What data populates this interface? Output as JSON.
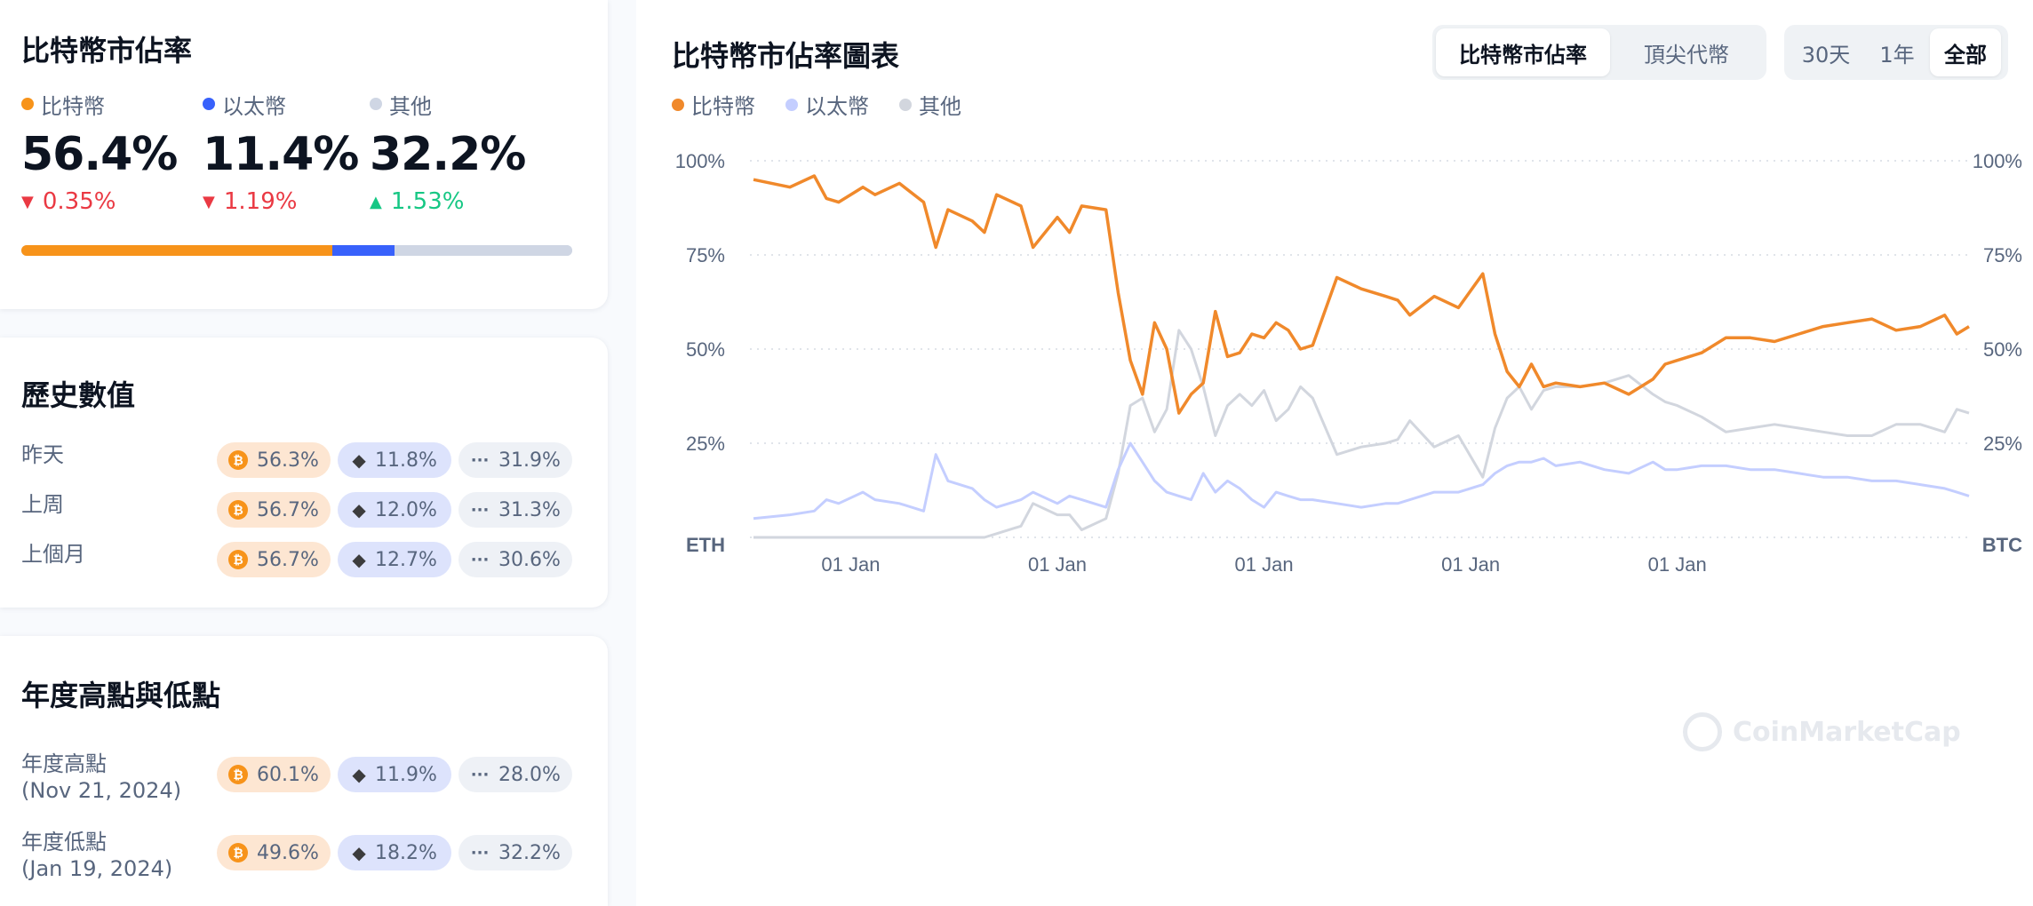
{
  "colors": {
    "btc": "#f7931a",
    "eth": "#3861fb",
    "other": "#cfd6e4",
    "btc_line": "#f0892b",
    "eth_line": "#c4ceff",
    "other_line": "#d2d6de"
  },
  "dominance": {
    "title": "比特幣市佔率",
    "items": [
      {
        "label": "比特幣",
        "value": "56.4%",
        "change": "0.35%",
        "direction": "down",
        "share": 56.4
      },
      {
        "label": "以太幣",
        "value": "11.4%",
        "change": "1.19%",
        "direction": "down",
        "share": 11.4
      },
      {
        "label": "其他",
        "value": "32.2%",
        "change": "1.53%",
        "direction": "up",
        "share": 32.2
      }
    ]
  },
  "history": {
    "title": "歷史數值",
    "rows": [
      {
        "label": "昨天",
        "btc": "56.3%",
        "eth": "11.8%",
        "other": "31.9%"
      },
      {
        "label": "上周",
        "btc": "56.7%",
        "eth": "12.0%",
        "other": "31.3%"
      },
      {
        "label": "上個月",
        "btc": "56.7%",
        "eth": "12.7%",
        "other": "30.6%"
      }
    ]
  },
  "yearly": {
    "title": "年度高點與低點",
    "rows": [
      {
        "label": "年度高點",
        "date": "(Nov 21, 2024)",
        "btc": "60.1%",
        "eth": "11.9%",
        "other": "28.0%"
      },
      {
        "label": "年度低點",
        "date": "(Jan 19, 2024)",
        "btc": "49.6%",
        "eth": "18.2%",
        "other": "32.2%"
      }
    ]
  },
  "chart": {
    "title": "比特幣市佔率圖表",
    "tabs": [
      {
        "label": "比特幣市佔率",
        "active": true
      },
      {
        "label": "頂尖代幣",
        "active": false
      }
    ],
    "ranges": [
      {
        "label": "30天",
        "active": false
      },
      {
        "label": "1年",
        "active": false
      },
      {
        "label": "全部",
        "active": true
      }
    ],
    "legend": [
      "比特幣",
      "以太幣",
      "其他"
    ],
    "watermark": "CoinMarketCap"
  },
  "chart_data": {
    "type": "line",
    "x_tick_labels": [
      "01 Jan",
      "01 Jan",
      "01 Jan",
      "01 Jan",
      "01 Jan"
    ],
    "x_tick_positions": [
      0.08,
      0.25,
      0.42,
      0.59,
      0.76
    ],
    "y_tick_labels_left": [
      "100%",
      "75%",
      "50%",
      "25%",
      "ETH"
    ],
    "y_tick_labels_right": [
      "100%",
      "75%",
      "50%",
      "25%",
      "BTC"
    ],
    "ylim": [
      0,
      100
    ],
    "grid": true,
    "x": [
      0,
      0.03,
      0.05,
      0.06,
      0.07,
      0.09,
      0.1,
      0.12,
      0.14,
      0.15,
      0.16,
      0.18,
      0.19,
      0.2,
      0.22,
      0.23,
      0.25,
      0.26,
      0.27,
      0.29,
      0.3,
      0.31,
      0.32,
      0.33,
      0.34,
      0.35,
      0.36,
      0.37,
      0.38,
      0.39,
      0.4,
      0.41,
      0.42,
      0.43,
      0.44,
      0.45,
      0.46,
      0.48,
      0.5,
      0.52,
      0.53,
      0.54,
      0.56,
      0.58,
      0.6,
      0.61,
      0.62,
      0.63,
      0.64,
      0.65,
      0.66,
      0.68,
      0.7,
      0.72,
      0.74,
      0.75,
      0.76,
      0.78,
      0.8,
      0.82,
      0.84,
      0.86,
      0.88,
      0.9,
      0.92,
      0.94,
      0.96,
      0.98,
      0.99,
      1.0
    ],
    "series": [
      {
        "name": "比特幣",
        "values": [
          95,
          93,
          96,
          90,
          89,
          93,
          91,
          94,
          89,
          77,
          87,
          84,
          81,
          91,
          88,
          77,
          85,
          81,
          88,
          87,
          65,
          47,
          38,
          57,
          50,
          33,
          38,
          41,
          60,
          48,
          49,
          54,
          53,
          57,
          55,
          50,
          51,
          69,
          66,
          64,
          63,
          59,
          64,
          61,
          70,
          54,
          44,
          40,
          46,
          40,
          41,
          40,
          41,
          38,
          42,
          46,
          47,
          49,
          53,
          53,
          52,
          54,
          56,
          57,
          58,
          55,
          56,
          59,
          54,
          56
        ]
      },
      {
        "name": "以太幣",
        "values": [
          5,
          6,
          7,
          10,
          9,
          12,
          10,
          9,
          7,
          22,
          15,
          13,
          10,
          8,
          10,
          12,
          9,
          11,
          10,
          8,
          18,
          25,
          20,
          15,
          12,
          11,
          10,
          17,
          12,
          15,
          13,
          10,
          8,
          12,
          11,
          10,
          10,
          9,
          8,
          9,
          9,
          10,
          12,
          12,
          14,
          17,
          19,
          20,
          20,
          21,
          19,
          20,
          18,
          17,
          20,
          18,
          18,
          19,
          19,
          18,
          18,
          17,
          16,
          16,
          15,
          15,
          14,
          13,
          12,
          11
        ]
      },
      {
        "name": "其他",
        "values": [
          0,
          0,
          0,
          0,
          0,
          0,
          0,
          0,
          0,
          0,
          0,
          0,
          0,
          1,
          3,
          9,
          6,
          6,
          2,
          5,
          17,
          35,
          37,
          28,
          34,
          55,
          50,
          40,
          27,
          35,
          38,
          35,
          39,
          31,
          34,
          40,
          37,
          22,
          24,
          25,
          26,
          31,
          24,
          27,
          16,
          29,
          37,
          40,
          34,
          39,
          40,
          40,
          41,
          43,
          38,
          36,
          35,
          32,
          28,
          29,
          30,
          29,
          28,
          27,
          27,
          30,
          30,
          28,
          34,
          33
        ]
      }
    ]
  }
}
